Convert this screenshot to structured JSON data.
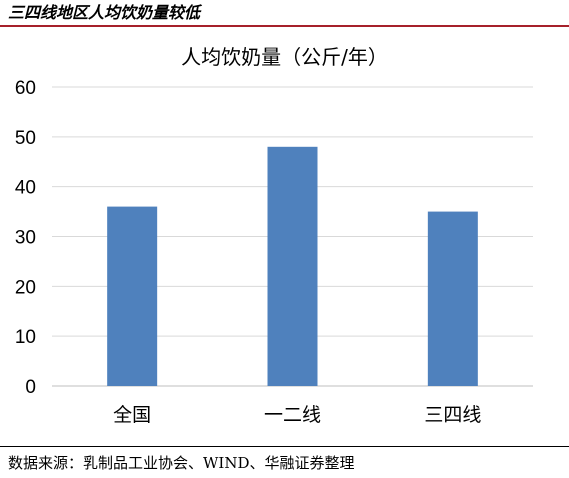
{
  "header": {
    "title": "三四线地区人均饮奶量较低"
  },
  "chart_data": {
    "type": "bar",
    "title": "人均饮奶量（公斤/年）",
    "categories": [
      "全国",
      "一二线",
      "三四线"
    ],
    "values": [
      36,
      48,
      35
    ],
    "ylim": [
      0,
      60
    ],
    "yticks": [
      0,
      10,
      20,
      30,
      40,
      50,
      60
    ],
    "bar_color": "#4f81bd",
    "grid": true,
    "legend": "none"
  },
  "footer": {
    "source": "数据来源：乳制品工业协会、WIND、华融证券整理"
  }
}
